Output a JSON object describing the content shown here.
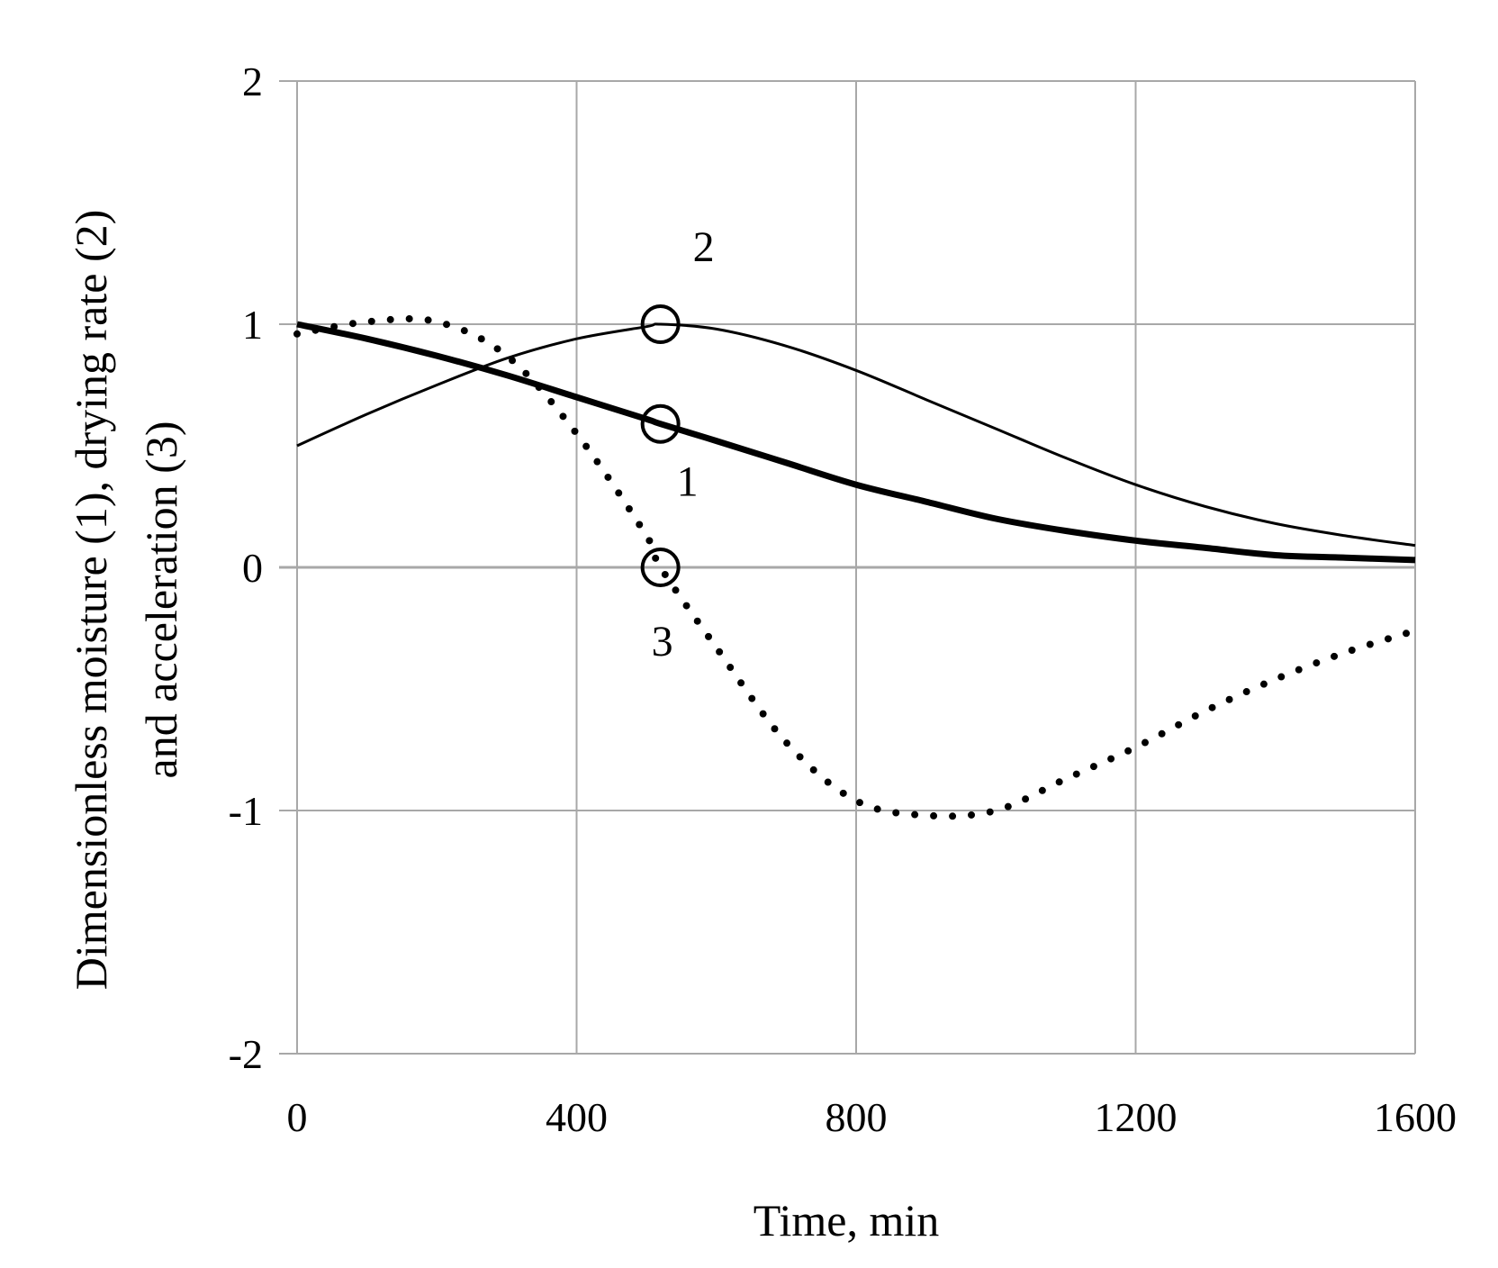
{
  "chart_data": {
    "type": "line",
    "title": "",
    "xlabel": "Time, min",
    "ylabel_lines": [
      "Dimensionless moisture (1), drying rate (2)",
      "and acceleration (3)"
    ],
    "xlim": [
      0,
      1600
    ],
    "ylim": [
      -2,
      2
    ],
    "x_ticks": [
      0,
      400,
      800,
      1200,
      1600
    ],
    "x_tick_labels": [
      "0",
      "400",
      "800",
      "1200",
      "1600"
    ],
    "y_ticks": [
      -2,
      -1,
      0,
      1,
      2
    ],
    "y_tick_labels": [
      "-2",
      "-1",
      "0",
      "1",
      "2"
    ],
    "grid": true,
    "x": [
      0,
      100,
      200,
      300,
      400,
      500,
      520,
      600,
      700,
      800,
      900,
      1000,
      1100,
      1200,
      1300,
      1400,
      1500,
      1600
    ],
    "series": [
      {
        "name": "1",
        "style": "solid-thick",
        "values": [
          1.0,
          0.94,
          0.87,
          0.79,
          0.7,
          0.61,
          0.59,
          0.52,
          0.43,
          0.34,
          0.27,
          0.2,
          0.15,
          0.11,
          0.08,
          0.05,
          0.04,
          0.03
        ]
      },
      {
        "name": "2",
        "style": "solid-thin",
        "values": [
          0.5,
          0.63,
          0.75,
          0.86,
          0.94,
          0.99,
          1.0,
          0.98,
          0.91,
          0.81,
          0.69,
          0.57,
          0.45,
          0.34,
          0.25,
          0.18,
          0.13,
          0.09
        ]
      },
      {
        "name": "3",
        "style": "dotted",
        "values": [
          0.96,
          1.01,
          1.01,
          0.87,
          0.55,
          0.13,
          0.0,
          -0.33,
          -0.72,
          -0.96,
          -1.02,
          -1.0,
          -0.87,
          -0.74,
          -0.59,
          -0.46,
          -0.35,
          -0.26
        ]
      }
    ],
    "markers": [
      {
        "series": "2",
        "x": 520,
        "y": 1.0,
        "label": "2",
        "label_position": "above-right"
      },
      {
        "series": "1",
        "x": 520,
        "y": 0.59,
        "label": "1",
        "label_position": "below-right"
      },
      {
        "series": "3",
        "x": 520,
        "y": 0.0,
        "label": "3",
        "label_position": "below"
      }
    ]
  }
}
